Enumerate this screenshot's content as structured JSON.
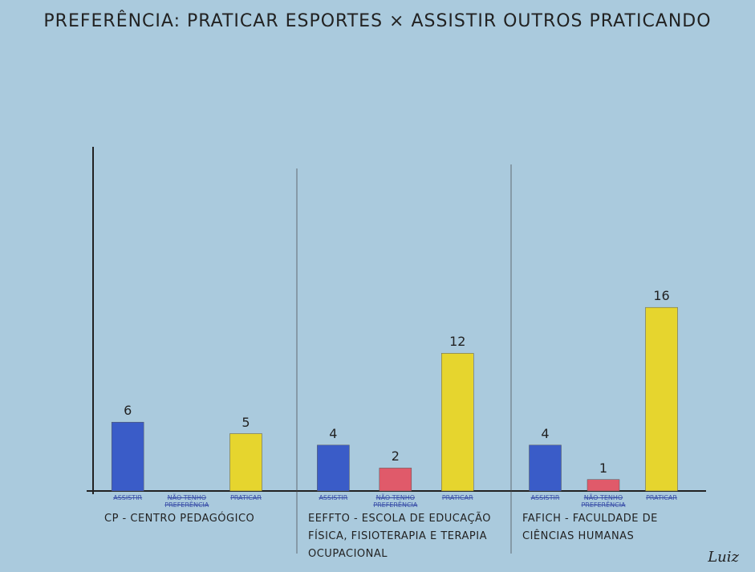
{
  "chart_data": {
    "type": "bar",
    "title": "PREFERÊNCIA: PRATICAR ESPORTES × ASSISTIR OUTROS PRATICANDO",
    "categories": [
      "CP - CENTRO PEDAGÓGICO",
      "EEFFTO - ESCOLA DE EDUCAÇÃO FÍSICA, FISIOTERAPIA E TERAPIA OCUPACIONAL",
      "FAFICH - FACULDADE DE CIÊNCIAS HUMANAS"
    ],
    "series": [
      {
        "name": "ASSISTIR",
        "color": "#3a5cc8",
        "values": [
          6,
          4,
          4
        ]
      },
      {
        "name": "NÃO TENHO PREFERÊNCIA",
        "color": "#e05a6a",
        "values": [
          null,
          2,
          1
        ]
      },
      {
        "name": "PRATICAR",
        "color": "#e6d52e",
        "values": [
          5,
          12,
          16
        ]
      }
    ],
    "ylim": [
      0,
      30
    ],
    "signature": "Luiz"
  }
}
